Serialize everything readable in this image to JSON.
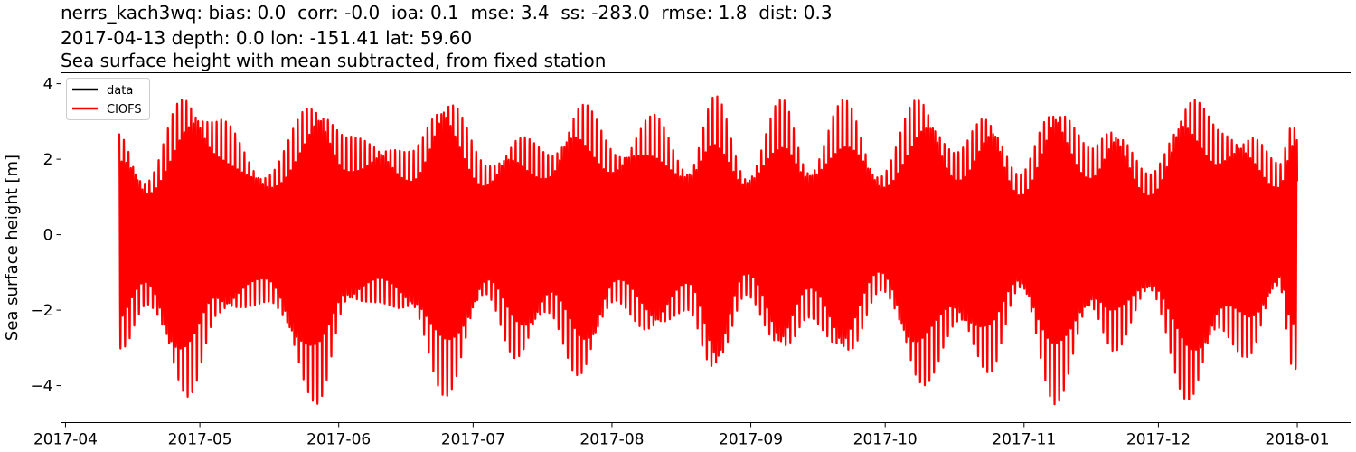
{
  "chart_data": {
    "type": "line",
    "title_lines": [
      "nerrs_kach3wq: bias: 0.0  corr: -0.0  ioa: 0.1  mse: 3.4  ss: -283.0  rmse: 1.8  dist: 0.3",
      "2017-04-13 depth: 0.0 lon: -151.41 lat: 59.60",
      "Sea surface height with mean subtracted, from fixed station"
    ],
    "xlabel": "",
    "ylabel": "Sea surface height [m]",
    "xlim": [
      "2017-03-31",
      "2018-01-13"
    ],
    "ylim": [
      -4.98,
      4.29
    ],
    "x_ticks": [
      "2017-04",
      "2017-05",
      "2017-06",
      "2017-07",
      "2017-08",
      "2017-09",
      "2017-10",
      "2017-11",
      "2017-12",
      "2018-01"
    ],
    "x_tick_dates": [
      "2017-04-01",
      "2017-05-01",
      "2017-06-01",
      "2017-07-01",
      "2017-08-01",
      "2017-09-01",
      "2017-10-01",
      "2017-11-01",
      "2017-12-01",
      "2018-01-01"
    ],
    "y_ticks": [
      4,
      2,
      0,
      -2,
      -4
    ],
    "y_tick_labels": [
      "4",
      "2",
      "0",
      "−2",
      "−4"
    ],
    "grid": false,
    "legend": {
      "placement": "top-left",
      "entries": [
        "data",
        "CIOFS"
      ]
    },
    "series": [
      {
        "name": "data",
        "color": "#000000",
        "start": "2017-04-13",
        "end": "2017-12-31",
        "constant_value": 0.0
      },
      {
        "name": "CIOFS",
        "color": "#ff0000",
        "start": "2017-04-13",
        "end": "2017-12-31",
        "envelope": {
          "dates": [
            "2017-04-13",
            "2017-04-19",
            "2017-04-28",
            "2017-05-05",
            "2017-05-16",
            "2017-05-27",
            "2017-06-03",
            "2017-06-10",
            "2017-06-17",
            "2017-06-25",
            "2017-07-04",
            "2017-07-11",
            "2017-07-18",
            "2017-07-25",
            "2017-08-02",
            "2017-08-10",
            "2017-08-18",
            "2017-08-24",
            "2017-08-31",
            "2017-09-08",
            "2017-09-14",
            "2017-09-22",
            "2017-09-30",
            "2017-10-09",
            "2017-10-17",
            "2017-10-24",
            "2017-10-31",
            "2017-11-08",
            "2017-11-16",
            "2017-11-21",
            "2017-11-29",
            "2017-12-08",
            "2017-12-15",
            "2017-12-21",
            "2017-12-28",
            "2017-12-31"
          ],
          "max": [
            2.8,
            1.5,
            3.85,
            3.1,
            1.7,
            3.75,
            2.6,
            2.6,
            2.2,
            3.9,
            1.9,
            2.7,
            2.2,
            3.6,
            2.3,
            3.2,
            1.9,
            3.7,
            1.7,
            3.6,
            1.9,
            3.6,
            1.7,
            3.8,
            2.2,
            3.4,
            1.6,
            3.7,
            2.3,
            3.1,
            1.6,
            3.8,
            2.8,
            2.8,
            1.9,
            3.2
          ],
          "min": [
            -3.2,
            -1.9,
            -4.4,
            -2.3,
            -1.8,
            -4.5,
            -2.0,
            -1.8,
            -2.2,
            -4.3,
            -1.7,
            -3.4,
            -2.2,
            -3.9,
            -1.8,
            -2.8,
            -2.0,
            -4.0,
            -1.6,
            -3.4,
            -2.2,
            -3.5,
            -1.5,
            -4.1,
            -2.6,
            -3.7,
            -1.6,
            -4.5,
            -2.2,
            -3.1,
            -1.7,
            -4.5,
            -2.7,
            -3.3,
            -1.5,
            -3.6
          ]
        }
      }
    ]
  }
}
